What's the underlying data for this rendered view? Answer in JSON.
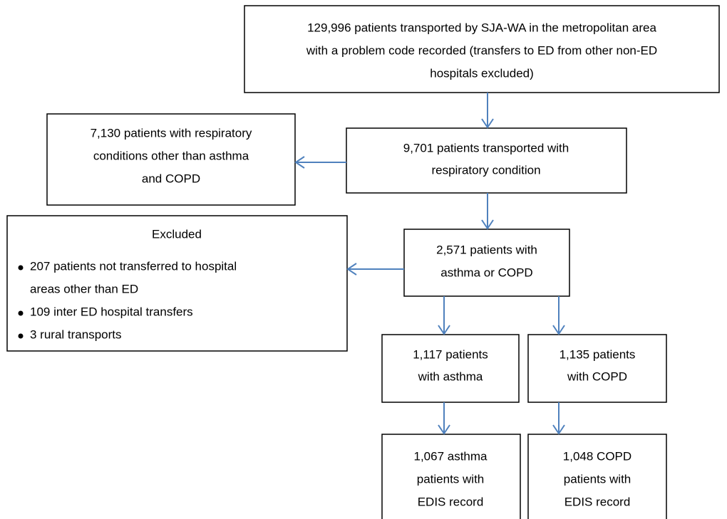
{
  "nodes": [
    {
      "lines": [
        "129,996 patients transported by SJA-WA in the metropolitan area",
        "with a problem code recorded (transfers to ED from other non-ED",
        "hospitals excluded)"
      ]
    },
    {
      "lines": [
        "9,701 patients transported with",
        "respiratory condition"
      ]
    },
    {
      "lines": [
        "7,130 patients with respiratory",
        "conditions other than asthma",
        "and COPD"
      ]
    },
    {
      "lines": [
        "2,571 patients with",
        "asthma or COPD"
      ]
    },
    {
      "lines": [
        "1,117 patients",
        "with asthma"
      ]
    },
    {
      "lines": [
        "1,135 patients",
        "with COPD"
      ]
    },
    {
      "lines": [
        "1,067 asthma",
        "patients with",
        "EDIS record"
      ]
    },
    {
      "lines": [
        "1,048 COPD",
        "patients with",
        "EDIS record"
      ]
    }
  ],
  "excluded": {
    "title": "Excluded",
    "items": [
      [
        "207 patients not transferred to hospital",
        "areas other than ED"
      ],
      [
        "109 inter ED hospital transfers"
      ],
      [
        "3 rural transports"
      ]
    ]
  }
}
